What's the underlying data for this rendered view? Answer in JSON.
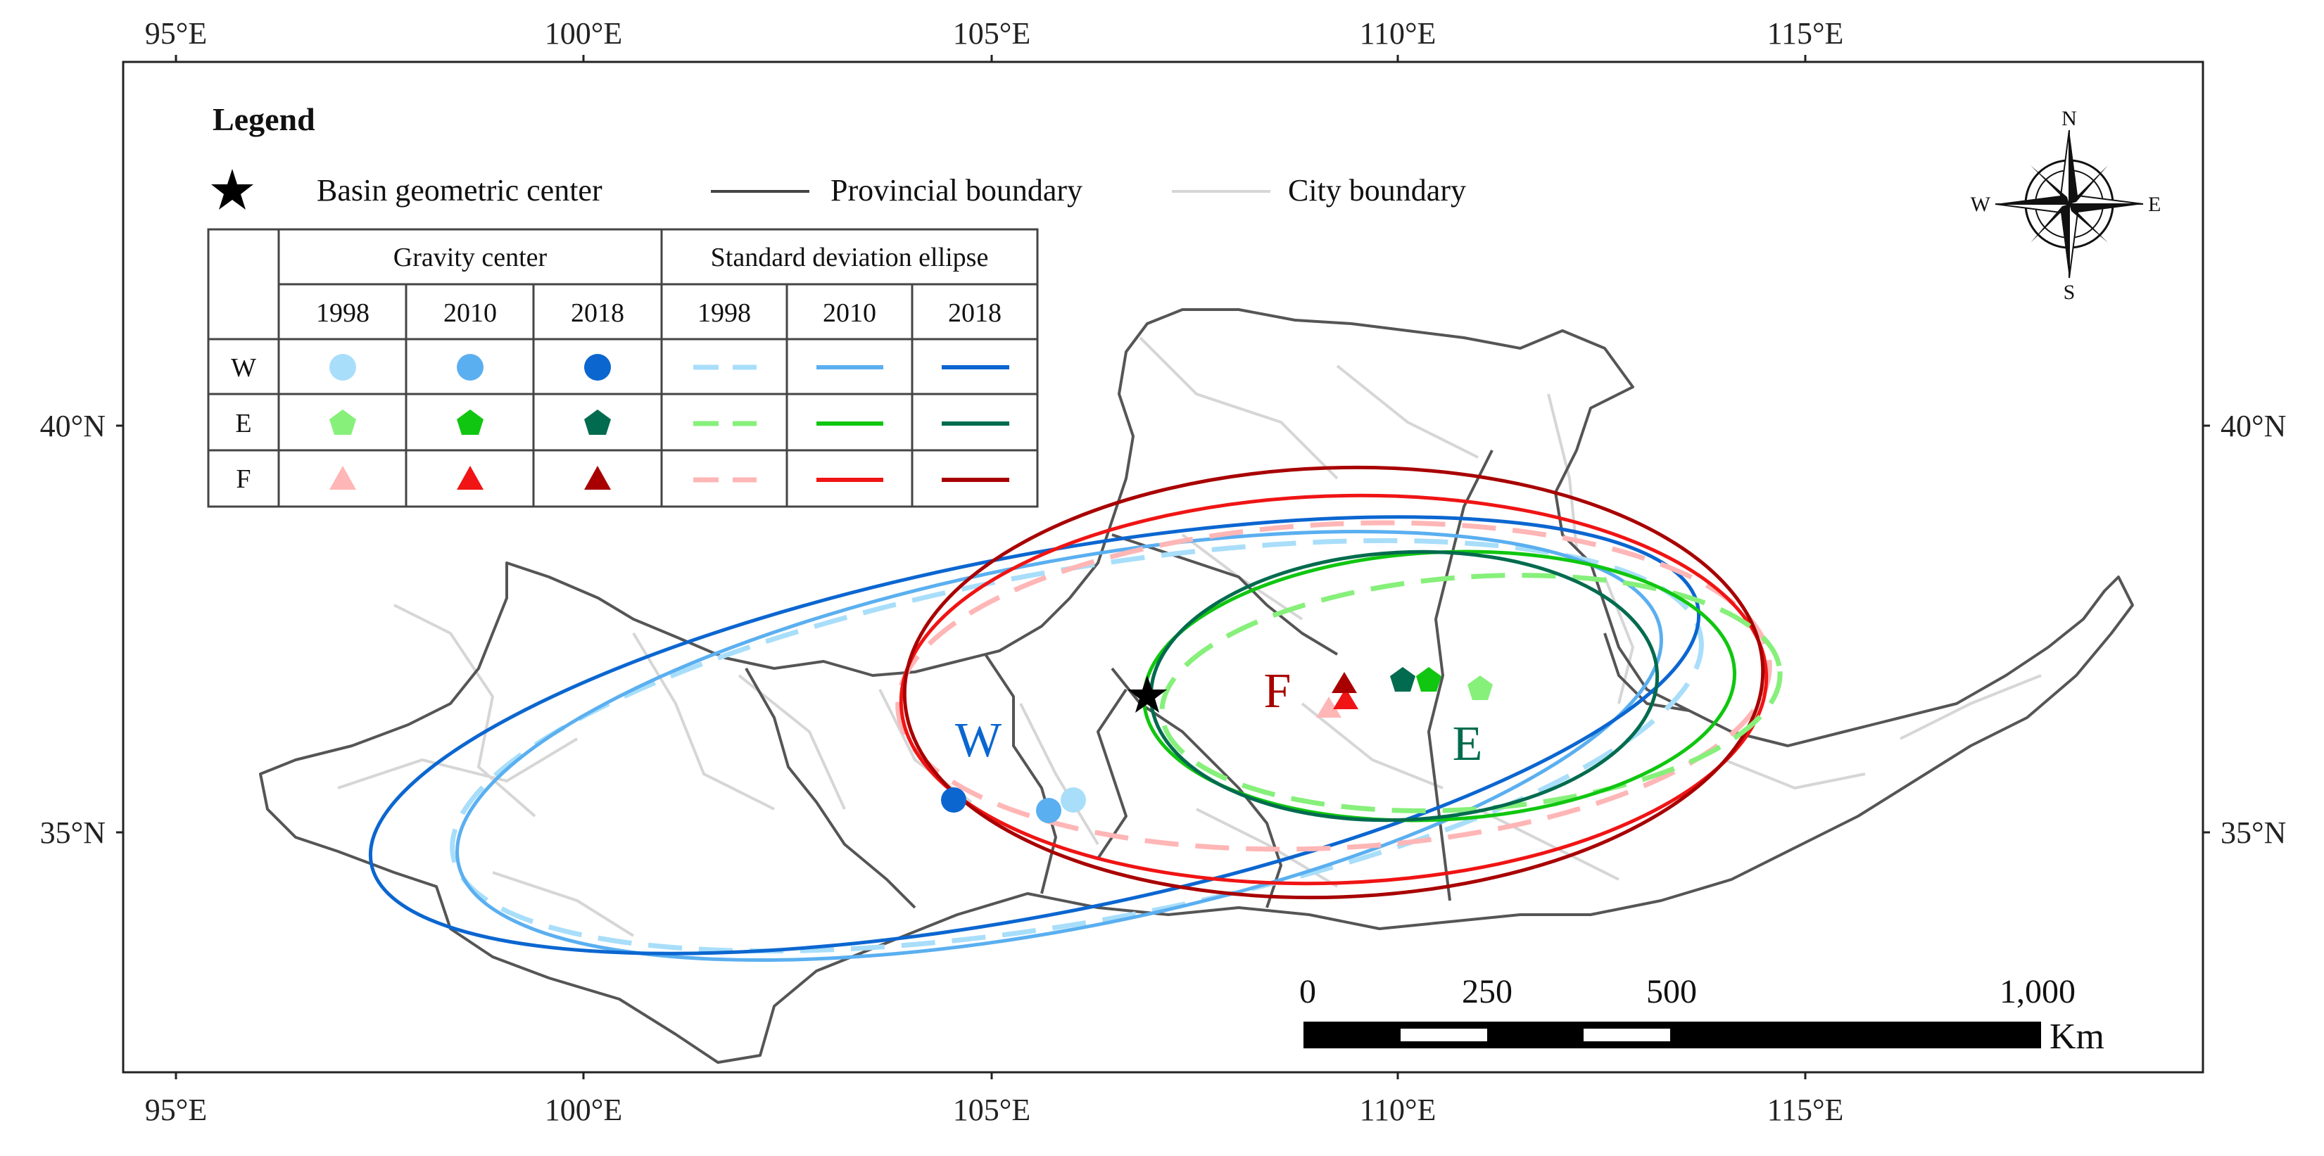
{
  "axes": {
    "top_ticks": [
      "95°E",
      "100°E",
      "105°E",
      "110°E",
      "115°E"
    ],
    "bottom_ticks": [
      "95°E",
      "100°E",
      "105°E",
      "110°E",
      "115°E"
    ],
    "left_ticks": [
      "40°N",
      "35°N"
    ],
    "right_ticks": [
      "40°N",
      "35°N"
    ]
  },
  "legend": {
    "title": "Legend",
    "basin_center": "Basin geometric center",
    "provincial": "Provincial boundary",
    "city": "City boundary",
    "table": {
      "gravity_header": "Gravity center",
      "ellipse_header": "Standard deviation ellipse",
      "years": [
        "1998",
        "2010",
        "2018",
        "1998",
        "2010",
        "2018"
      ],
      "rows": [
        "W",
        "E",
        "F"
      ]
    }
  },
  "compass": {
    "n": "N",
    "s": "S",
    "e": "E",
    "w": "W"
  },
  "scale_bar": {
    "labels": [
      "0",
      "250",
      "500",
      "1,000"
    ],
    "unit": "Km"
  },
  "map_labels": {
    "w": "W",
    "e": "E",
    "f": "F"
  },
  "colors": {
    "W": [
      "#a8defa",
      "#5aaff0",
      "#0b66d0"
    ],
    "E": [
      "#86f07a",
      "#10c610",
      "#006b4e"
    ],
    "F": [
      "#ffb6b6",
      "#f01414",
      "#a80000"
    ],
    "boundary": "#555555",
    "city": "#d6d6d6"
  }
}
